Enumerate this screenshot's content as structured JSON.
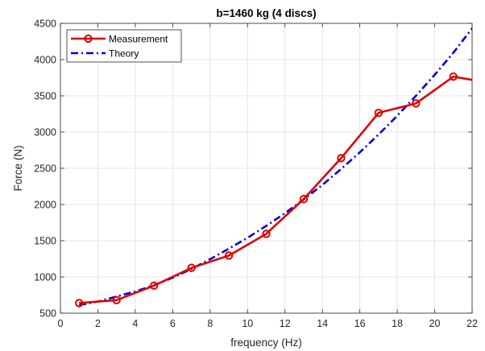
{
  "chart_data": {
    "type": "line",
    "title": "b=1460 kg (4 discs)",
    "xlabel": "frequency (Hz)",
    "ylabel": "Force (N)",
    "xlim": [
      0,
      22
    ],
    "ylim": [
      500,
      4500
    ],
    "xticks": [
      0,
      2,
      4,
      6,
      8,
      10,
      12,
      14,
      16,
      18,
      20,
      22
    ],
    "yticks": [
      500,
      1000,
      1500,
      2000,
      2500,
      3000,
      3500,
      4000,
      4500
    ],
    "grid": true,
    "legend_position": "top-left",
    "series": [
      {
        "name": "Measurement",
        "color": "#e00000",
        "style": "solid",
        "marker": "circle",
        "x": [
          1,
          3,
          5,
          7,
          9,
          11,
          13,
          15,
          17,
          19,
          21,
          22
        ],
        "y": [
          640,
          680,
          880,
          1125,
          1295,
          1595,
          2075,
          2640,
          3265,
          3395,
          3765,
          3720
        ],
        "marker_x": [
          1,
          3,
          5,
          7,
          9,
          11,
          13,
          15,
          17,
          19,
          21
        ]
      },
      {
        "name": "Theory",
        "color": "#0000dd",
        "style": "dashdot",
        "marker": "none",
        "x": [
          1,
          2,
          3,
          4,
          5,
          6,
          7,
          8,
          9,
          10,
          11,
          12,
          13,
          14,
          15,
          16,
          17,
          18,
          19,
          20,
          21,
          22
        ],
        "y": [
          610,
          660,
          730,
          800,
          885,
          990,
          1110,
          1245,
          1390,
          1540,
          1705,
          1880,
          2070,
          2270,
          2490,
          2720,
          2965,
          3225,
          3500,
          3790,
          4095,
          4430
        ]
      }
    ]
  }
}
